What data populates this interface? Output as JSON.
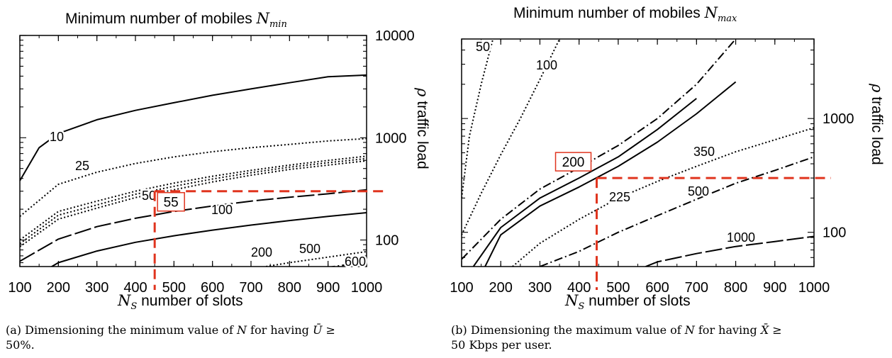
{
  "chart_data": [
    {
      "type": "line",
      "panel": "a",
      "title": "Minimum number of mobiles N_min",
      "title_text": "Minimum number of mobiles ",
      "title_symbol": "N",
      "title_subscript": "min",
      "xlabel_symbol": "N",
      "xlabel_subscript": "S",
      "xlabel_text": " number of slots",
      "ylabel_symbol": "ρ",
      "ylabel_text": "traffic load",
      "x_scale": "linear",
      "y_scale": "log",
      "xlim": [
        100,
        1000
      ],
      "ylim": [
        55,
        10000
      ],
      "x_ticks": [
        100,
        200,
        300,
        400,
        500,
        600,
        700,
        800,
        900,
        1000
      ],
      "x_tick_labels": [
        "100",
        "200",
        "300",
        "400",
        "500",
        "600",
        "700",
        "800",
        "900",
        "1000"
      ],
      "y_ticks": [
        100,
        1000,
        10000
      ],
      "y_tick_labels": [
        "100",
        "1000",
        "10000"
      ],
      "grid": false,
      "contours": [
        {
          "label": "10",
          "style": "solid",
          "width": 2,
          "x": [
            100,
            150,
            200,
            300,
            400,
            500,
            600,
            700,
            800,
            900,
            1000
          ],
          "y": [
            380,
            800,
            1100,
            1500,
            1850,
            2200,
            2600,
            3000,
            3450,
            3950,
            4100
          ]
        },
        {
          "label": "25",
          "style": "dotted",
          "width": 2,
          "x": [
            100,
            200,
            300,
            400,
            500,
            600,
            700,
            800,
            900,
            1000
          ],
          "y": [
            170,
            350,
            460,
            560,
            650,
            730,
            800,
            860,
            930,
            980
          ]
        },
        {
          "label": "50",
          "style": "dotted",
          "width": 2,
          "x": [
            100,
            200,
            300,
            400,
            500,
            600,
            700,
            800,
            900,
            1000
          ],
          "y": [
            100,
            190,
            240,
            300,
            360,
            420,
            480,
            540,
            600,
            660
          ]
        },
        {
          "label": "55",
          "style": "dotted",
          "width": 2,
          "x": [
            100,
            200,
            300,
            400,
            500,
            600,
            700,
            800,
            900,
            1000
          ],
          "y": [
            92,
            175,
            220,
            280,
            335,
            395,
            455,
            515,
            570,
            625
          ]
        },
        {
          "label": "",
          "style": "dotted",
          "width": 2,
          "x": [
            100,
            200,
            300,
            400,
            500,
            600,
            700,
            800,
            900,
            1000
          ],
          "y": [
            86,
            160,
            205,
            260,
            310,
            370,
            430,
            490,
            540,
            595
          ]
        },
        {
          "label": "100",
          "style": "longdash",
          "width": 2,
          "x": [
            100,
            200,
            300,
            400,
            500,
            600,
            700,
            800,
            900,
            1000
          ],
          "y": [
            62,
            102,
            135,
            163,
            190,
            215,
            240,
            262,
            283,
            310
          ]
        },
        {
          "label": "200",
          "style": "solid",
          "width": 2,
          "x": [
            100,
            200,
            300,
            400,
            500,
            600,
            700,
            800,
            900,
            1000
          ],
          "y": [
            36,
            60,
            78,
            95,
            110,
            125,
            140,
            155,
            170,
            185
          ]
        },
        {
          "label": "500",
          "style": "dotted",
          "width": 2,
          "x": [
            100,
            300,
            500,
            700,
            800,
            900,
            1000
          ],
          "y": [
            18,
            30,
            42,
            52,
            60,
            68,
            77
          ]
        },
        {
          "label": "600",
          "style": "dashdot",
          "width": 2,
          "x": [
            100,
            400,
            700,
            800,
            900,
            1000
          ],
          "y": [
            15,
            26,
            38,
            46,
            54,
            61
          ]
        }
      ],
      "marker": {
        "x": 450,
        "y": 300,
        "label": "55",
        "color": "#e0341e"
      }
    },
    {
      "type": "line",
      "panel": "b",
      "title": "Minimum number of mobiles N_max",
      "title_text": "Minimum number of mobiles ",
      "title_symbol": "N",
      "title_subscript": "max",
      "xlabel_symbol": "N",
      "xlabel_subscript": "S",
      "xlabel_text": " number of slots",
      "ylabel_symbol": "ρ",
      "ylabel_text": "traffic load",
      "x_scale": "linear",
      "y_scale": "log",
      "xlim": [
        100,
        1000
      ],
      "ylim": [
        50,
        5000
      ],
      "x_ticks": [
        100,
        200,
        300,
        400,
        500,
        600,
        700,
        800,
        900,
        1000
      ],
      "x_tick_labels": [
        "100",
        "200",
        "300",
        "400",
        "500",
        "600",
        "700",
        "800",
        "900",
        "1000"
      ],
      "y_ticks": [
        100,
        1000
      ],
      "y_tick_labels": [
        "100",
        "1000"
      ],
      "grid": false,
      "contours": [
        {
          "label": "50",
          "style": "dotted",
          "width": 2,
          "x": [
            100,
            120,
            150,
            180
          ],
          "y": [
            200,
            700,
            2000,
            5000
          ]
        },
        {
          "label": "100",
          "style": "dotted",
          "width": 2,
          "x": [
            100,
            150,
            200,
            250,
            300,
            350
          ],
          "y": [
            95,
            220,
            480,
            1000,
            2200,
            5000
          ]
        },
        {
          "label": "",
          "style": "dashdot",
          "width": 2,
          "x": [
            100,
            200,
            300,
            400,
            500,
            600,
            700,
            800
          ],
          "y": [
            58,
            130,
            240,
            370,
            580,
            1000,
            2000,
            5000
          ]
        },
        {
          "label": "200",
          "style": "solid",
          "width": 2,
          "x": [
            130,
            200,
            300,
            400,
            500,
            600,
            700
          ],
          "y": [
            50,
            110,
            200,
            300,
            460,
            800,
            1500
          ]
        },
        {
          "label": "225",
          "style": "solid",
          "width": 2,
          "x": [
            160,
            200,
            300,
            400,
            500,
            600,
            700,
            800
          ],
          "y": [
            50,
            95,
            170,
            250,
            380,
            620,
            1100,
            2100
          ]
        },
        {
          "label": "350",
          "style": "dotted",
          "width": 2,
          "x": [
            230,
            300,
            400,
            500,
            600,
            700,
            800,
            900,
            1000
          ],
          "y": [
            50,
            80,
            130,
            200,
            280,
            380,
            510,
            650,
            830
          ]
        },
        {
          "label": "500",
          "style": "dashdot",
          "width": 2,
          "x": [
            300,
            400,
            500,
            600,
            700,
            800,
            900,
            1000
          ],
          "y": [
            50,
            68,
            100,
            140,
            195,
            270,
            350,
            460
          ]
        },
        {
          "label": "1000",
          "style": "longdash",
          "width": 2,
          "x": [
            570,
            600,
            700,
            800,
            900,
            1000
          ],
          "y": [
            50,
            55,
            65,
            75,
            83,
            92
          ]
        }
      ],
      "marker": {
        "x": 445,
        "y": 300,
        "label": "200",
        "color": "#e0341e"
      }
    }
  ],
  "captions": {
    "a_line1_pre": "(a) Dimensioning the minimum value of ",
    "a_line1_sym": "N",
    "a_line1_mid": " for having ",
    "a_line1_var": "Ū",
    "a_line1_post": " ≥",
    "a_line2": "50%.",
    "b_line1_pre": "(b) Dimensioning the maximum value of ",
    "b_line1_sym": "N",
    "b_line1_mid": " for having ",
    "b_line1_var": "X̄",
    "b_line1_post": " ≥",
    "b_line2": "50 Kbps per user."
  }
}
